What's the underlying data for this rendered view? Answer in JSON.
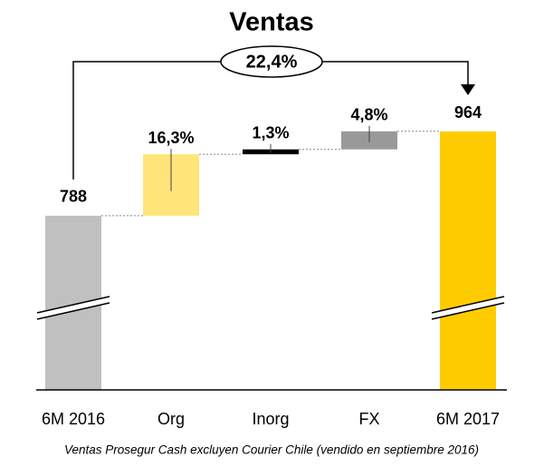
{
  "chart_data": {
    "type": "waterfall",
    "title": "Ventas",
    "categories": [
      "6M 2016",
      "Org",
      "Inorg",
      "FX",
      "6M 2017"
    ],
    "values": [
      788,
      128.4,
      10.2,
      37.8,
      964
    ],
    "growth": [
      null,
      16.3,
      1.3,
      4.8,
      null
    ],
    "growth_labels": [
      null,
      "16,3%",
      "1,3%",
      "4,8%",
      null
    ],
    "total_growth": 22.4,
    "total_growth_label": "22,4%",
    "colors": [
      "#c0c0c0",
      "#ffe57a",
      "#000000",
      "#999999",
      "#ffcc00"
    ],
    "ylim": [
      424,
      1000
    ],
    "footnote": "Ventas Prosegur Cash excluyen Courier Chile (vendido en septiembre 2016)"
  }
}
